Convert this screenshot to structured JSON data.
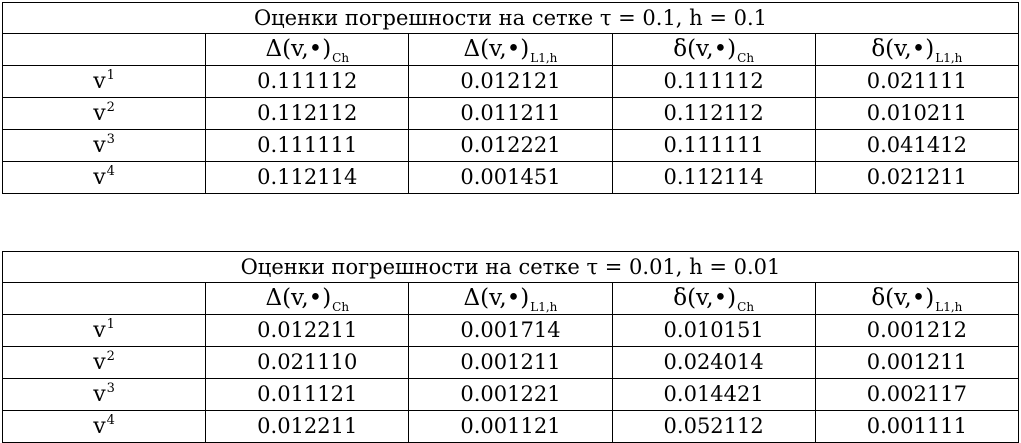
{
  "tables": [
    {
      "caption": "Оценки погрешности на сетке τ = 0.1,  h = 0.1",
      "columns": [
        {
          "symbol": "Δ(v,•)",
          "sub": "Ch"
        },
        {
          "symbol": "Δ(v,•)",
          "sub": "L1,h"
        },
        {
          "symbol": "δ(v,•)",
          "sub": "Ch"
        },
        {
          "symbol": "δ(v,•)",
          "sub": "L1,h"
        }
      ],
      "rows": [
        {
          "name": "v",
          "sup": "1",
          "values": [
            "0.111112",
            "0.012121",
            "0.111112",
            "0.021111"
          ]
        },
        {
          "name": "v",
          "sup": "2",
          "values": [
            "0.112112",
            "0.011211",
            "0.112112",
            "0.010211"
          ]
        },
        {
          "name": "v",
          "sup": "3",
          "values": [
            "0.111111",
            "0.012221",
            "0.111111",
            "0.041412"
          ]
        },
        {
          "name": "v",
          "sup": "4",
          "values": [
            "0.112114",
            "0.001451",
            "0.112114",
            "0.021211"
          ]
        }
      ]
    },
    {
      "caption": "Оценки погрешности на сетке τ = 0.01,  h = 0.01",
      "columns": [
        {
          "symbol": "Δ(v,•)",
          "sub": "Ch"
        },
        {
          "symbol": "Δ(v,•)",
          "sub": "L1,h"
        },
        {
          "symbol": "δ(v,•)",
          "sub": "Ch"
        },
        {
          "symbol": "δ(v,•)",
          "sub": "L1,h"
        }
      ],
      "rows": [
        {
          "name": "v",
          "sup": "1",
          "values": [
            "0.012211",
            "0.001714",
            "0.010151",
            "0.001212"
          ]
        },
        {
          "name": "v",
          "sup": "2",
          "values": [
            "0.021110",
            "0.001211",
            "0.024014",
            "0.001211"
          ]
        },
        {
          "name": "v",
          "sup": "3",
          "values": [
            "0.011121",
            "0.001221",
            "0.014421",
            "0.002117"
          ]
        },
        {
          "name": "v",
          "sup": "4",
          "values": [
            "0.012211",
            "0.001121",
            "0.052112",
            "0.001111"
          ]
        }
      ]
    }
  ]
}
